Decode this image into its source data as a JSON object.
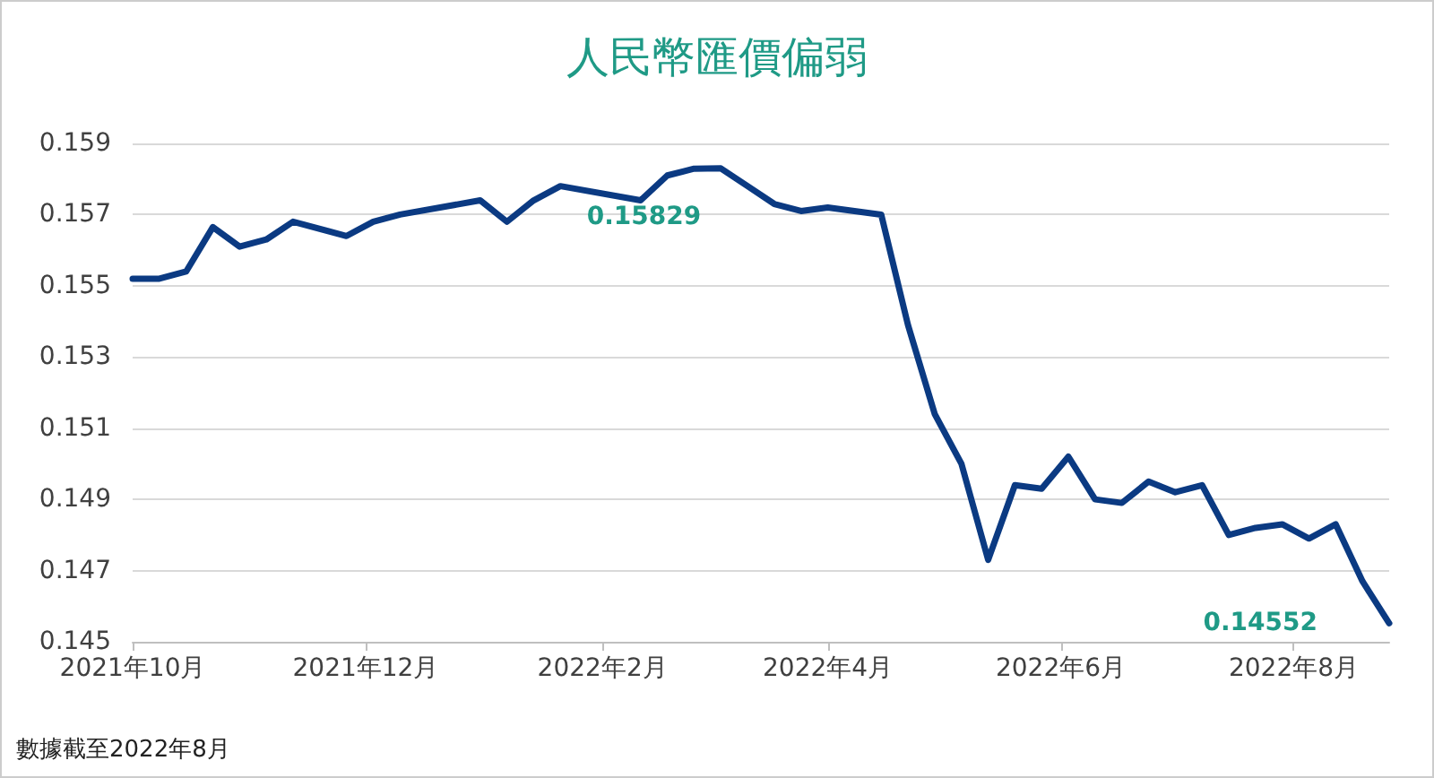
{
  "chart_data": {
    "type": "line",
    "title": "人民幣匯價偏弱",
    "x": [
      "2021-10-01",
      "2021-10-08",
      "2021-10-15",
      "2021-10-22",
      "2021-10-29",
      "2021-11-05",
      "2021-11-12",
      "2021-11-26",
      "2021-12-03",
      "2021-12-10",
      "2021-12-31",
      "2022-01-07",
      "2022-01-14",
      "2022-01-21",
      "2022-02-11",
      "2022-02-18",
      "2022-02-25",
      "2022-03-04",
      "2022-03-11",
      "2022-03-18",
      "2022-03-25",
      "2022-04-01",
      "2022-04-08",
      "2022-04-15",
      "2022-04-22",
      "2022-04-29",
      "2022-05-06",
      "2022-05-13",
      "2022-05-20",
      "2022-05-27",
      "2022-06-03",
      "2022-06-10",
      "2022-06-17",
      "2022-06-24",
      "2022-07-01",
      "2022-07-08",
      "2022-07-15",
      "2022-07-22",
      "2022-07-29",
      "2022-08-05",
      "2022-08-12",
      "2022-08-19",
      "2022-08-26"
    ],
    "series": [
      {
        "color": "#0b3a82",
        "values": [
          0.1552,
          0.1552,
          0.1554,
          0.15665,
          0.1561,
          0.1563,
          0.1568,
          0.1564,
          0.1568,
          0.157,
          0.1574,
          0.1568,
          0.1574,
          0.1578,
          0.1574,
          0.1581,
          0.15829,
          0.1583,
          0.1578,
          0.1573,
          0.1571,
          0.1572,
          0.1571,
          0.157,
          0.1539,
          0.1514,
          0.15,
          0.1473,
          0.1494,
          0.1493,
          0.1502,
          0.149,
          0.1489,
          0.1495,
          0.1492,
          0.1494,
          0.148,
          0.1482,
          0.1483,
          0.1479,
          0.1483,
          0.1467,
          0.14552
        ]
      }
    ],
    "xlim": [
      "2021-10-01",
      "2022-08-26"
    ],
    "xticks": [
      {
        "value": "2021-10-01",
        "label": "2021年10月"
      },
      {
        "value": "2021-12-01",
        "label": "2021年12月"
      },
      {
        "value": "2022-02-01",
        "label": "2022年2月"
      },
      {
        "value": "2022-04-01",
        "label": "2022年4月"
      },
      {
        "value": "2022-06-01",
        "label": "2022年6月"
      },
      {
        "value": "2022-08-01",
        "label": "2022年8月"
      }
    ],
    "ylim": [
      0.145,
      0.159
    ],
    "yticks": [
      0.145,
      0.147,
      0.149,
      0.151,
      0.153,
      0.155,
      0.157,
      0.159
    ],
    "grid": "y",
    "marker": "none",
    "line_style": "solid",
    "annotations": [
      {
        "text": "0.15829",
        "x": "2022-02-25",
        "y": 0.15829
      },
      {
        "text": "0.14552",
        "x": "2022-08-26",
        "y": 0.14552
      },
      "數據截至2022年8月"
    ]
  }
}
